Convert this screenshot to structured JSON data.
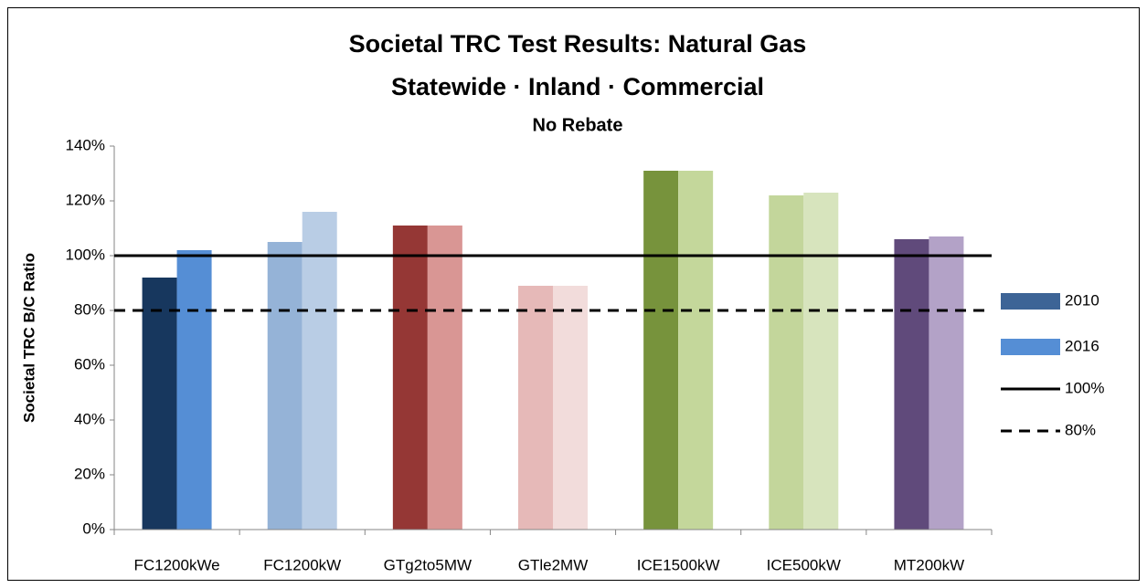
{
  "chart_data": {
    "type": "bar",
    "title": "Societal TRC Test Results:  Natural Gas",
    "subtitle": "Statewide · Inland · Commercial",
    "subtitle2": "No Rebate",
    "y_label": "Societal TRC B/C Ratio",
    "categories": [
      "FC1200kWe",
      "FC1200kW",
      "GTg2to5MW",
      "GTle2MW",
      "ICE1500kW",
      "ICE500kW",
      "MT200kW"
    ],
    "series": [
      {
        "name": "2010",
        "color": "#3d6496",
        "values": [
          92,
          105,
          111,
          89,
          131,
          122,
          106
        ],
        "colors": [
          "#17375e",
          "#95b3d7",
          "#953735",
          "#e6b9b8",
          "#77933c",
          "#c3d69b",
          "#604a7b"
        ]
      },
      {
        "name": "2016",
        "color": "#558ed5",
        "values": [
          102,
          116,
          111,
          89,
          131,
          123,
          107
        ],
        "colors": [
          "#558ed5",
          "#b9cde5",
          "#d99694",
          "#f2dcdb",
          "#c4d79b",
          "#d7e4bd",
          "#b3a2c7"
        ]
      }
    ],
    "reference_lines": [
      {
        "name": "100%",
        "value": 100,
        "color": "#000000",
        "dashed": false
      },
      {
        "name": "80%",
        "value": 80,
        "color": "#000000",
        "dashed": true
      }
    ],
    "ylim": [
      0,
      140
    ],
    "yticks": [
      {
        "value": 0,
        "label": "0%"
      },
      {
        "value": 20,
        "label": "20%"
      },
      {
        "value": 40,
        "label": "40%"
      },
      {
        "value": 60,
        "label": "60%"
      },
      {
        "value": 80,
        "label": "80%"
      },
      {
        "value": 100,
        "label": "100%"
      },
      {
        "value": 120,
        "label": "120%"
      },
      {
        "value": 140,
        "label": "140%"
      }
    ],
    "grid": false,
    "legend": "right"
  }
}
